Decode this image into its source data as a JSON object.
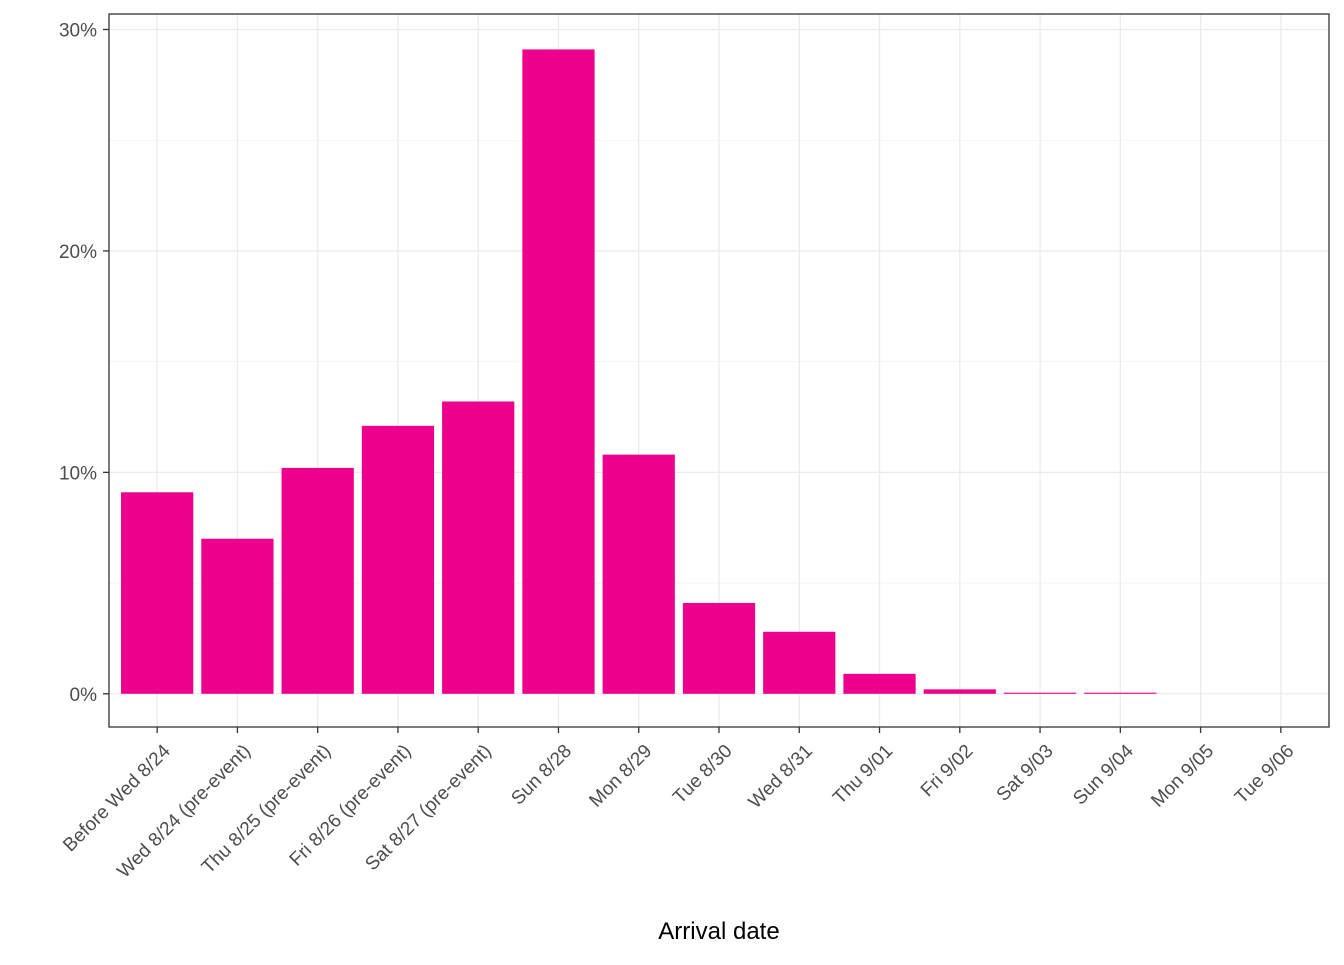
{
  "chart_data": {
    "type": "bar",
    "categories": [
      "Before Wed 8/24",
      "Wed 8/24 (pre-event)",
      "Thu 8/25 (pre-event)",
      "Fri 8/26 (pre-event)",
      "Sat 8/27 (pre-event)",
      "Sun 8/28",
      "Mon 8/29",
      "Tue 8/30",
      "Wed 8/31",
      "Thu 9/01",
      "Fri 9/02",
      "Sat 9/03",
      "Sun 9/04",
      "Mon 9/05",
      "Tue 9/06"
    ],
    "values": [
      9.1,
      7.0,
      10.2,
      12.1,
      13.2,
      29.1,
      10.8,
      4.1,
      2.8,
      0.9,
      0.2,
      0.05,
      0.05,
      0,
      0
    ],
    "title": "",
    "xlabel": "Arrival date",
    "ylabel": "",
    "ylim": [
      -1.5,
      30.7
    ],
    "yticks": [
      0,
      10,
      20,
      30
    ],
    "ytick_labels": [
      "0%",
      "10%",
      "20%",
      "30%"
    ],
    "bar_color": "#EC008C",
    "grid": true,
    "legend": "none"
  }
}
